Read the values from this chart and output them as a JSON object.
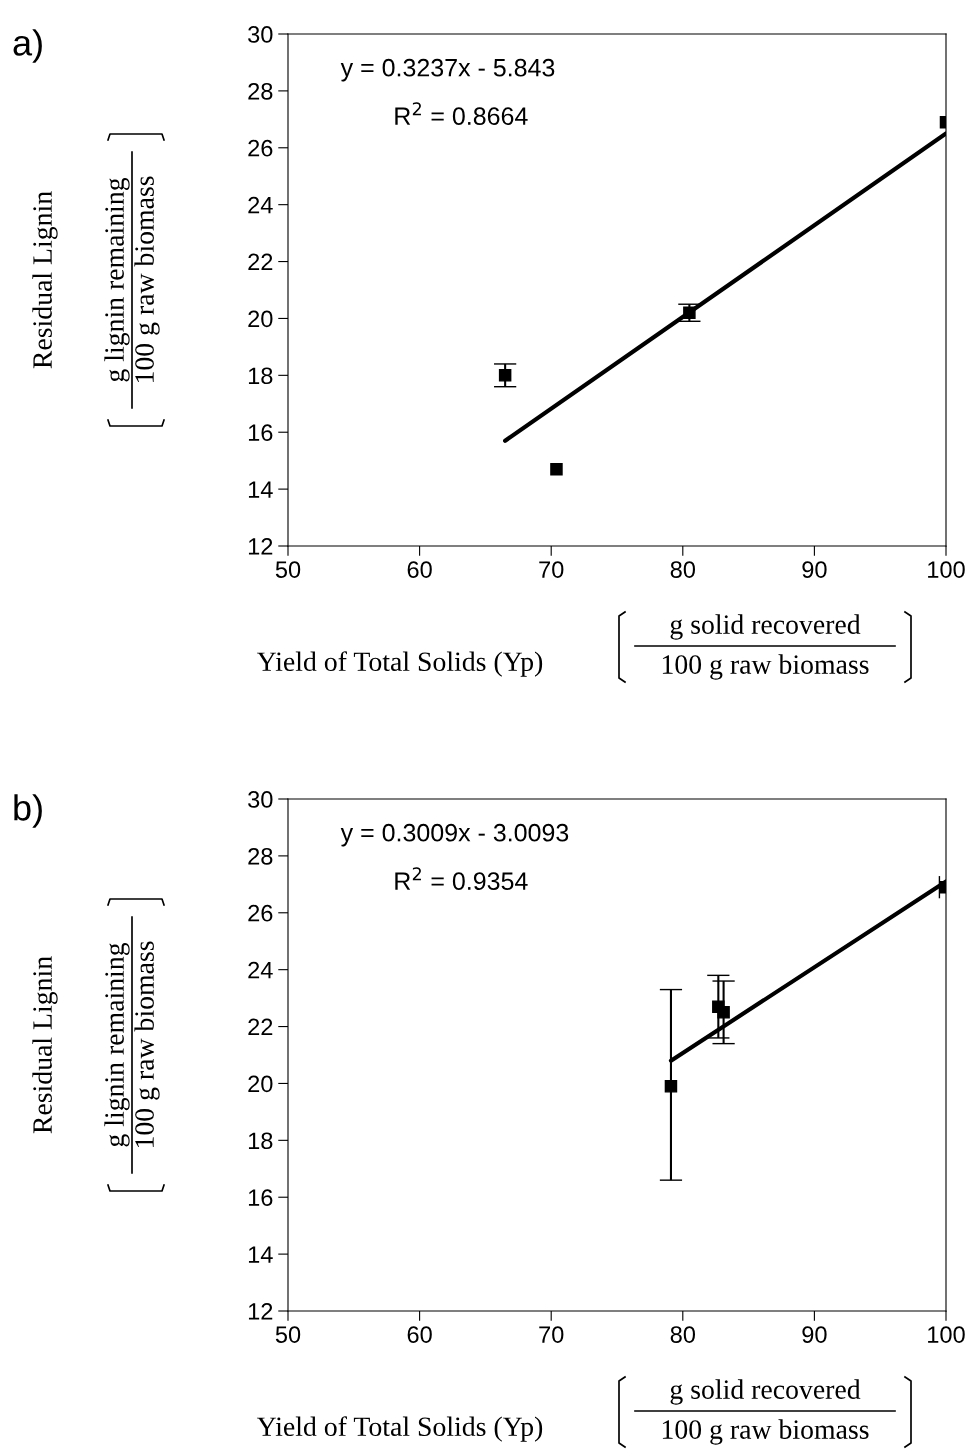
{
  "chart_data": [
    {
      "type": "scatter",
      "title": "a)",
      "xlabel": "Yield of Total Solids (Yp)",
      "ylabel": "Residual Lignin",
      "annotations": [
        "y = 0.3237x - 5.843",
        "R$^{2}$ = 0.8664",
        "g lignin remaining",
        "100 g raw biomass",
        "g solid recovered",
        "100 g raw biomass"
      ],
      "xlim": [
        50,
        100
      ],
      "xticks": [
        50,
        60,
        70,
        80,
        90,
        100
      ],
      "ylim": [
        12,
        30
      ],
      "yticks": [
        12,
        14,
        16,
        18,
        20,
        22,
        24,
        26,
        28,
        30
      ],
      "grid": false,
      "legend": false,
      "marker": "square",
      "series": [
        {
          "color": "#000000",
          "x": [
            66.5,
            70.4,
            80.5,
            100
          ],
          "values": [
            18.0,
            14.7,
            20.2,
            26.9
          ],
          "errors": [
            0.4,
            null,
            0.3,
            null
          ]
        },
        {
          "type": "line",
          "color": "#000000",
          "line_style": "solid",
          "marker": "none",
          "x": [
            66.5,
            100
          ],
          "values": [
            15.7,
            26.5
          ]
        }
      ]
    },
    {
      "type": "scatter",
      "title": "b)",
      "xlabel": "Yield of Total Solids (Yp)",
      "ylabel": "Residual Lignin",
      "annotations": [
        "y = 0.3009x - 3.0093",
        "R$^{2}$ = 0.9354",
        "g lignin remaining",
        "100 g raw biomass",
        "g solid recovered",
        "100 g raw biomass"
      ],
      "xlim": [
        50,
        100
      ],
      "xticks": [
        50,
        60,
        70,
        80,
        90,
        100
      ],
      "ylim": [
        12,
        30
      ],
      "yticks": [
        12,
        14,
        16,
        18,
        20,
        22,
        24,
        26,
        28,
        30
      ],
      "grid": false,
      "legend": false,
      "marker": "square",
      "series": [
        {
          "color": "#000000",
          "x": [
            79.1,
            82.7,
            83.1,
            100
          ],
          "values": [
            19.9,
            22.7,
            22.5,
            26.9
          ],
          "errors": [
            [
              16.6,
              23.3
            ],
            [
              21.6,
              23.8
            ],
            [
              21.4,
              23.6
            ],
            null
          ],
          "xerrors": [
            null,
            null,
            null,
            0.5
          ]
        },
        {
          "type": "line",
          "color": "#000000",
          "line_style": "solid",
          "marker": "none",
          "x": [
            79.1,
            100
          ],
          "values": [
            20.8,
            27.1
          ]
        }
      ]
    }
  ]
}
